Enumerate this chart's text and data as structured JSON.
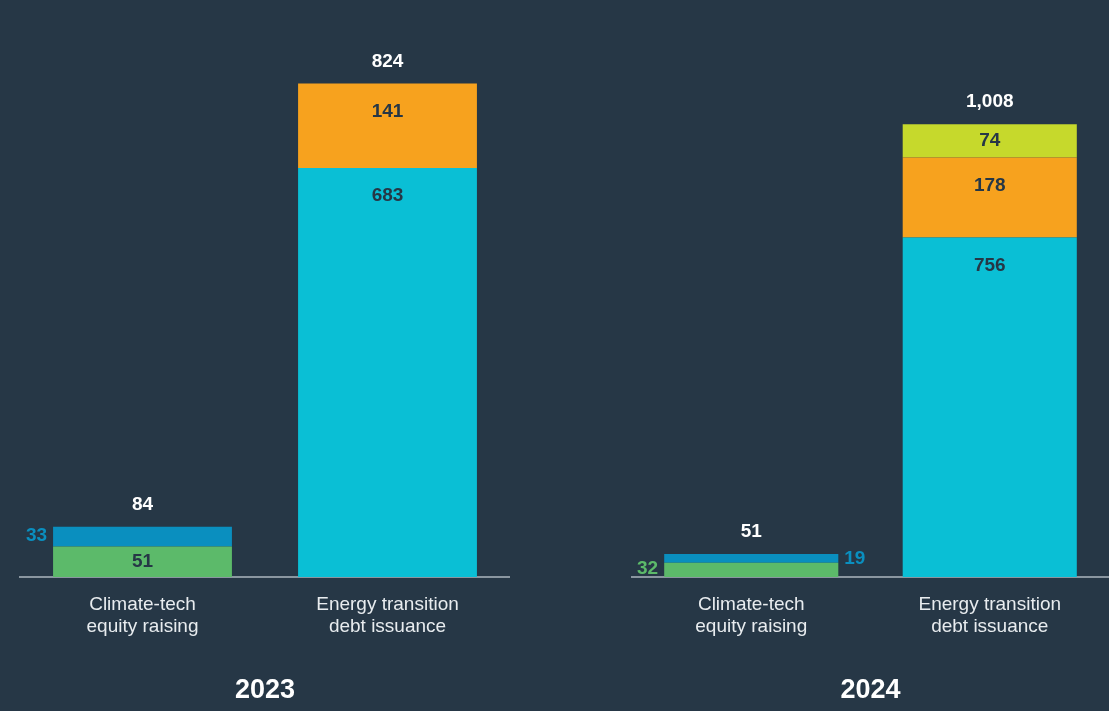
{
  "chart_data": [
    {
      "type": "bar",
      "title": "2023",
      "stacked": true,
      "data_labels": true,
      "categories": [
        "Climate-tech equity raising",
        "Energy transition debt issuance"
      ],
      "series": [
        {
          "color": "#5cba6a",
          "values": [
            51,
            null
          ]
        },
        {
          "color": "#0a8fbf",
          "values": [
            33,
            null
          ]
        },
        {
          "color": "#0abfd5",
          "values": [
            null,
            683
          ]
        },
        {
          "color": "#f7a21e",
          "values": [
            null,
            141
          ]
        }
      ],
      "totals": [
        "84",
        "824"
      ]
    },
    {
      "type": "bar",
      "title": "2024",
      "stacked": true,
      "data_labels": true,
      "categories": [
        "Climate-tech equity raising",
        "Energy transition debt issuance"
      ],
      "series": [
        {
          "color": "#5cba6a",
          "values": [
            32,
            null
          ]
        },
        {
          "color": "#0a8fbf",
          "values": [
            19,
            null
          ]
        },
        {
          "color": "#0abfd5",
          "values": [
            null,
            756
          ]
        },
        {
          "color": "#f7a21e",
          "values": [
            null,
            178
          ]
        },
        {
          "color": "#c6d92c",
          "values": [
            null,
            74
          ]
        }
      ],
      "totals": [
        "51",
        "1,008"
      ]
    }
  ]
}
